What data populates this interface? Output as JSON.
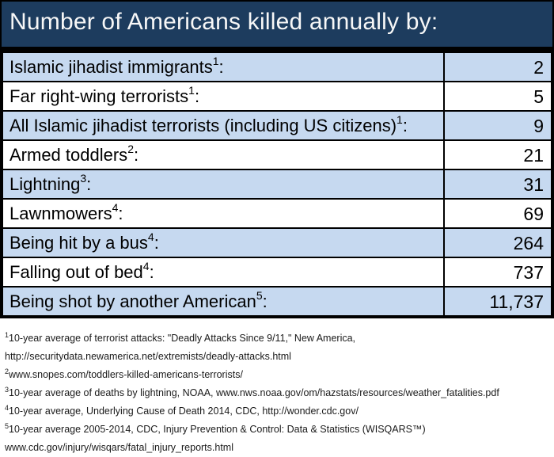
{
  "colors": {
    "header_bg": "#1d3c5e",
    "row_alt_bg": "#c6d9f0",
    "row_bg": "#ffffff",
    "border": "#000000",
    "title_text": "#f7f7f7",
    "body_text": "#000000"
  },
  "header": {
    "title": "Number of Americans killed annually by:"
  },
  "table": {
    "rows": [
      {
        "label": "Islamic jihadist immigrants",
        "sup": "1",
        "suffix": ":",
        "value": "2"
      },
      {
        "label": "Far right-wing terrorists",
        "sup": "1",
        "suffix": ":",
        "value": "5"
      },
      {
        "label": "All Islamic jihadist terrorists (including US citizens)",
        "sup": "1",
        "suffix": ":",
        "value": "9"
      },
      {
        "label": "Armed toddlers",
        "sup": "2",
        "suffix": ":",
        "value": "21"
      },
      {
        "label": "Lightning",
        "sup": "3",
        "suffix": ":",
        "value": "31"
      },
      {
        "label": "Lawnmowers",
        "sup": "4",
        "suffix": ":",
        "value": "69"
      },
      {
        "label": "Being hit by a bus",
        "sup": "4",
        "suffix": ":",
        "value": "264"
      },
      {
        "label": "Falling out of bed",
        "sup": "4",
        "suffix": ":",
        "value": "737"
      },
      {
        "label": "Being shot by another American",
        "sup": "5",
        "suffix": ":",
        "value": "11,737"
      }
    ]
  },
  "footnotes": [
    {
      "sup": "1",
      "line1": "10-year average of terrorist attacks: \"Deadly Attacks Since 9/11,\" New America,",
      "line2": "http://securitydata.newamerica.net/extremists/deadly-attacks.html"
    },
    {
      "sup": "2",
      "line1": "www.snopes.com/toddlers-killed-americans-terrorists/"
    },
    {
      "sup": "3",
      "line1": "10-year average of deaths by lightning, NOAA, www.nws.noaa.gov/om/hazstats/resources/weather_fatalities.pdf"
    },
    {
      "sup": "4",
      "line1": "10-year average, Underlying Cause of Death 2014, CDC, http://wonder.cdc.gov/"
    },
    {
      "sup": "5",
      "line1": "10-year average 2005-2014, CDC, Injury Prevention & Control: Data & Statistics (WISQARS™)",
      "line2": "www.cdc.gov/injury/wisqars/fatal_injury_reports.html"
    }
  ],
  "chart_data": {
    "type": "table",
    "title": "Number of Americans killed annually by:",
    "categories": [
      "Islamic jihadist immigrants",
      "Far right-wing terrorists",
      "All Islamic jihadist terrorists (including US citizens)",
      "Armed toddlers",
      "Lightning",
      "Lawnmowers",
      "Being hit by a bus",
      "Falling out of bed",
      "Being shot by another American"
    ],
    "values": [
      2,
      5,
      9,
      21,
      31,
      69,
      264,
      737,
      11737
    ]
  }
}
